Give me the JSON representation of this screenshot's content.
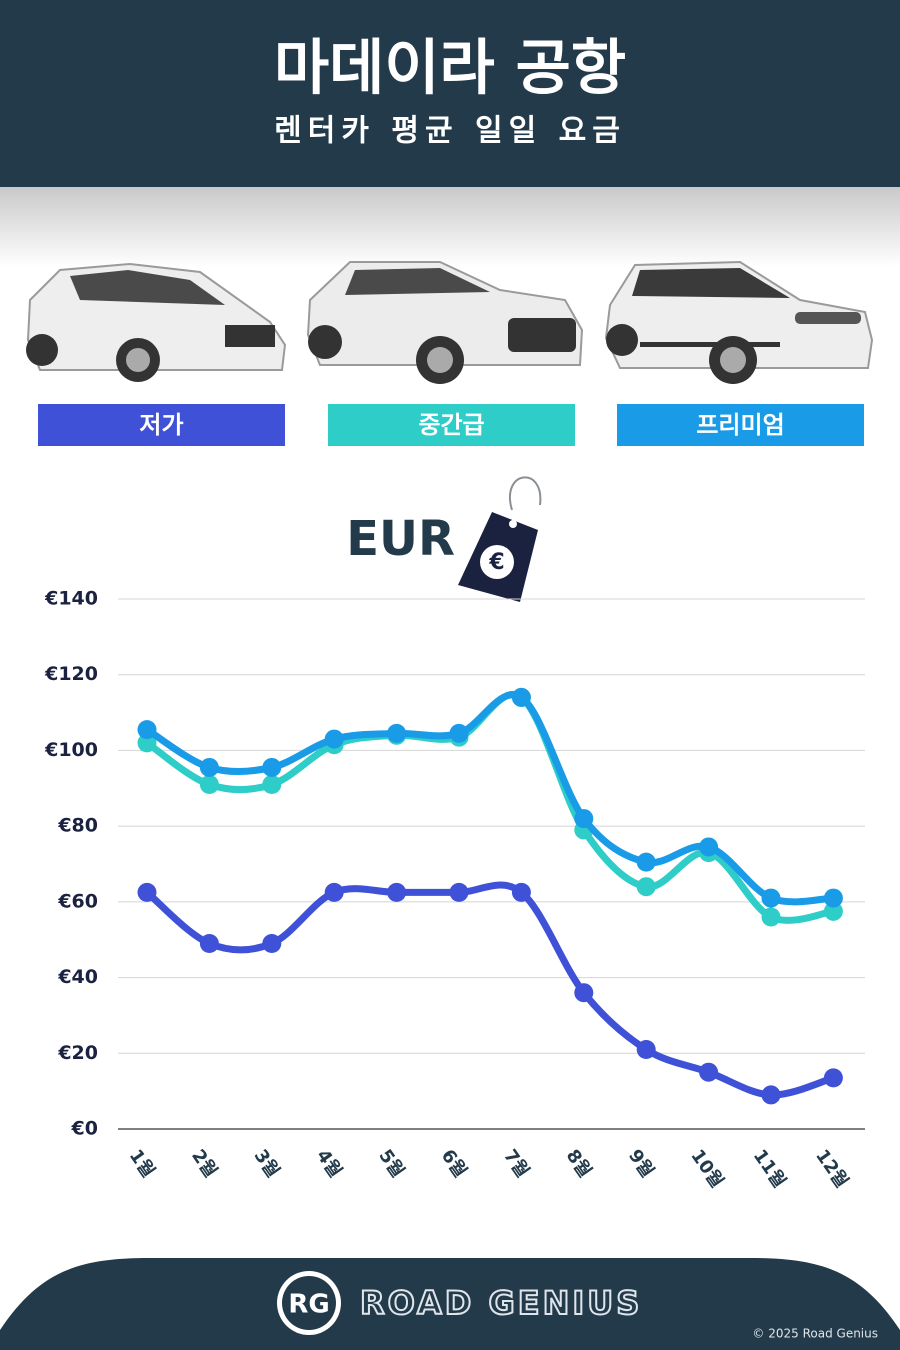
{
  "header": {
    "title": "마데이라 공항",
    "subtitle": "렌터카 평균 일일 요금"
  },
  "chart_data": {
    "type": "line",
    "currency_label": "EUR",
    "currency_symbol": "€",
    "categories": [
      "1월",
      "2월",
      "3월",
      "4월",
      "5월",
      "6월",
      "7월",
      "8월",
      "9월",
      "10월",
      "11월",
      "12월"
    ],
    "series": [
      {
        "name": "저가",
        "color": "#3f51d6",
        "values": [
          62.5,
          49,
          49,
          62.5,
          62.5,
          62.5,
          62.5,
          36,
          21,
          15,
          9,
          13.5
        ]
      },
      {
        "name": "중간급",
        "color": "#2ecdc8",
        "values": [
          102,
          91,
          91,
          101.5,
          104,
          103.5,
          114,
          79,
          64,
          73,
          56,
          57.5
        ]
      },
      {
        "name": "프리미엄",
        "color": "#1a9be8",
        "values": [
          105.5,
          95.5,
          95.5,
          103,
          104.5,
          104.5,
          114,
          82,
          70.5,
          74.5,
          61,
          61
        ]
      }
    ],
    "ylim": [
      0,
      140
    ],
    "yticks": [
      {
        "value": 0,
        "label": "€0"
      },
      {
        "value": 20,
        "label": "€20"
      },
      {
        "value": 40,
        "label": "€40"
      },
      {
        "value": 60,
        "label": "€60"
      },
      {
        "value": 80,
        "label": "€80"
      },
      {
        "value": 100,
        "label": "€100"
      },
      {
        "value": 120,
        "label": "€120"
      },
      {
        "value": 140,
        "label": "€140"
      }
    ],
    "grid": true
  },
  "footer": {
    "logo": "RG",
    "brand": "ROAD GENIUS",
    "copyright": "© 2025 Road Genius"
  }
}
